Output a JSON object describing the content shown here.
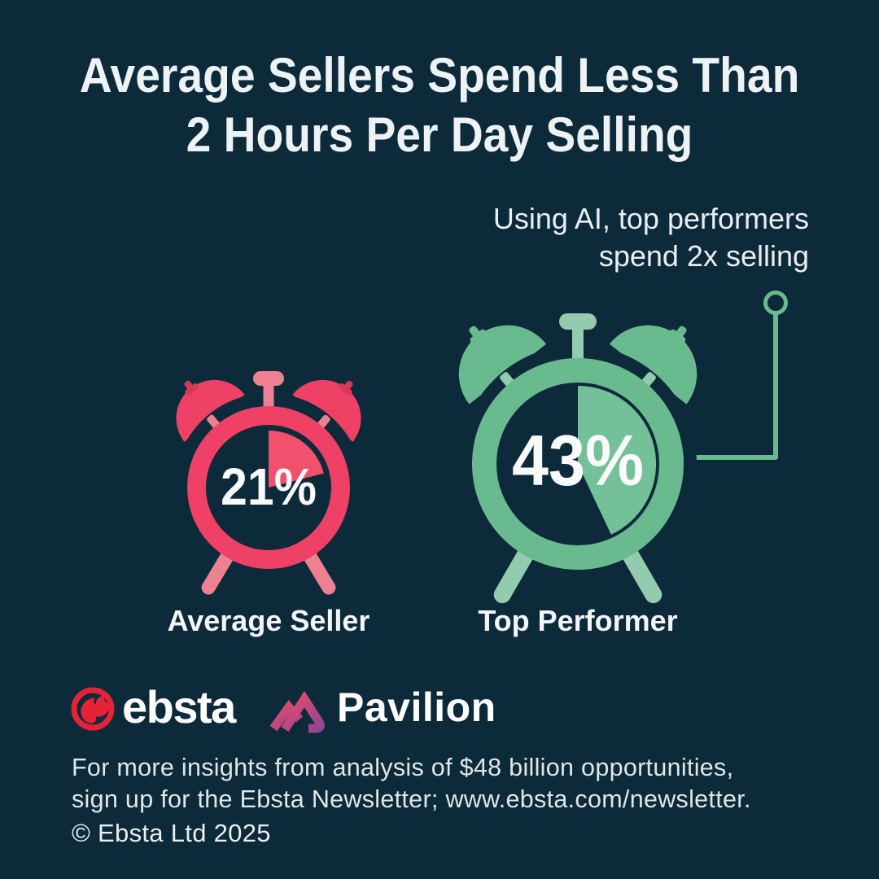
{
  "background": "#0D2A3A",
  "header": {
    "title_line1": "Average Sellers Spend Less Than",
    "title_line2": "2 Hours Per Day Selling"
  },
  "annotation": {
    "line1": "Using AI, top performers",
    "line2": "spend 2x selling"
  },
  "chart_data": {
    "type": "pie",
    "title": "Average Sellers Spend Less Than 2 Hours Per Day Selling",
    "annotation": "Using AI, top performers spend 2x selling",
    "unit": "percent of day spent selling",
    "series": [
      {
        "name": "Average Seller",
        "value": 21,
        "label": "21%",
        "color_main": "#EF4166",
        "color_wedge": "#F3506E",
        "color_accent": "#EE8191",
        "color_key": "#D8395B"
      },
      {
        "name": "Top Performer",
        "value": 43,
        "label": "43%",
        "color_main": "#6ABA90",
        "color_wedge": "#74C098",
        "color_accent": "#92CBAD",
        "color_key": "#6ABA90"
      }
    ]
  },
  "connector": {
    "color": "#6ABA90"
  },
  "logos": {
    "ebsta": {
      "text": "ebsta",
      "icon_color": "#E62237"
    },
    "pavilion": {
      "text": "Pavilion",
      "gradient_start": "#EA4A6A",
      "gradient_end": "#8E4694"
    }
  },
  "footer": {
    "line1": "For more insights from analysis of $48 billion opportunities,",
    "line2": "sign up for the Ebsta Newsletter; www.ebsta.com/newsletter.",
    "copyright": "© Ebsta Ltd 2025"
  }
}
